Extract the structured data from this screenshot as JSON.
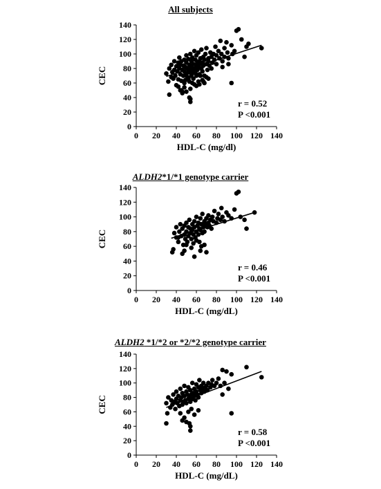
{
  "chart_data": [
    {
      "type": "scatter",
      "title": "All subjects",
      "title_italic": "",
      "xlabel": "HDL-C (mg/dl)",
      "ylabel": "CEC",
      "xlim": [
        0,
        140
      ],
      "ylim": [
        0,
        140
      ],
      "xticks": [
        0,
        20,
        40,
        60,
        80,
        100,
        120,
        140
      ],
      "yticks": [
        0,
        20,
        40,
        60,
        80,
        100,
        120,
        140
      ],
      "stats": [
        "r = 0.52",
        "P <0.001"
      ],
      "trendline": {
        "x": [
          30,
          125
        ],
        "y": [
          69,
          112
        ]
      },
      "points": {
        "x": [
          30,
          32,
          33,
          35,
          35,
          36,
          37,
          38,
          38,
          39,
          40,
          40,
          41,
          42,
          42,
          43,
          43,
          44,
          44,
          45,
          45,
          46,
          46,
          47,
          47,
          48,
          48,
          49,
          49,
          50,
          50,
          50,
          51,
          51,
          52,
          52,
          53,
          53,
          54,
          54,
          55,
          55,
          55,
          56,
          56,
          57,
          57,
          58,
          58,
          59,
          59,
          60,
          60,
          60,
          61,
          61,
          62,
          62,
          63,
          63,
          64,
          64,
          65,
          65,
          66,
          66,
          67,
          67,
          68,
          68,
          69,
          70,
          70,
          71,
          72,
          72,
          73,
          74,
          75,
          75,
          76,
          77,
          78,
          79,
          80,
          80,
          82,
          83,
          84,
          85,
          86,
          88,
          88,
          90,
          91,
          92,
          95,
          96,
          98,
          100,
          102,
          105,
          108,
          110,
          112,
          125,
          42,
          48,
          52,
          55,
          58,
          62,
          66,
          70,
          44,
          50,
          56,
          60,
          64,
          68,
          72,
          46,
          54,
          58,
          63,
          67,
          54,
          54,
          53,
          33,
          45,
          48,
          86,
          92,
          95
        ],
        "y": [
          73,
          62,
          80,
          68,
          85,
          75,
          66,
          78,
          90,
          70,
          83,
          57,
          76,
          88,
          65,
          80,
          95,
          72,
          85,
          63,
          90,
          78,
          48,
          84,
          70,
          92,
          76,
          82,
          64,
          88,
          72,
          98,
          80,
          68,
          93,
          75,
          85,
          62,
          78,
          100,
          90,
          70,
          82,
          76,
          95,
          86,
          66,
          80,
          104,
          74,
          92,
          84,
          70,
          98,
          88,
          78,
          102,
          82,
          90,
          72,
          94,
          86,
          80,
          106,
          88,
          76,
          96,
          84,
          92,
          70,
          100,
          86,
          108,
          78,
          94,
          90,
          84,
          102,
          96,
          80,
          88,
          100,
          92,
          110,
          86,
          98,
          104,
          94,
          118,
          100,
          90,
          108,
          96,
          116,
          102,
          94,
          112,
          100,
          104,
          132,
          134,
          120,
          96,
          110,
          114,
          108,
          55,
          60,
          66,
          72,
          58,
          62,
          64,
          68,
          50,
          48,
          60,
          56,
          70,
          60,
          66,
          46,
          52,
          74,
          58,
          62,
          34,
          38,
          40,
          44,
          50,
          54,
          82,
          86,
          60
        ]
      }
    },
    {
      "type": "scatter",
      "title": "*1/*1 genotype carrier",
      "title_italic": "ALDH2",
      "xlabel": "HDL-C (mg/dL)",
      "ylabel": "CEC",
      "xlim": [
        0,
        140
      ],
      "ylim": [
        0,
        140
      ],
      "xticks": [
        0,
        20,
        40,
        60,
        80,
        100,
        120,
        140
      ],
      "yticks": [
        0,
        20,
        40,
        60,
        80,
        100,
        120,
        140
      ],
      "stats": [
        "r = 0.46",
        "P <0.001"
      ],
      "trendline": {
        "x": [
          35,
          118
        ],
        "y": [
          71,
          106
        ]
      },
      "points": {
        "x": [
          36,
          38,
          40,
          40,
          42,
          43,
          44,
          45,
          46,
          47,
          48,
          48,
          49,
          50,
          50,
          51,
          52,
          52,
          53,
          54,
          54,
          55,
          56,
          56,
          57,
          58,
          58,
          59,
          60,
          60,
          61,
          62,
          62,
          63,
          64,
          64,
          65,
          66,
          66,
          67,
          68,
          68,
          69,
          70,
          71,
          72,
          72,
          73,
          74,
          75,
          76,
          77,
          78,
          80,
          81,
          82,
          84,
          85,
          86,
          88,
          90,
          92,
          95,
          98,
          100,
          102,
          104,
          108,
          110,
          118,
          37,
          46,
          50,
          55,
          60,
          65,
          70,
          42,
          48,
          57,
          63,
          68,
          58,
          64
        ],
        "y": [
          52,
          78,
          72,
          86,
          66,
          80,
          90,
          74,
          84,
          62,
          88,
          76,
          70,
          92,
          80,
          66,
          86,
          74,
          96,
          78,
          84,
          70,
          90,
          82,
          76,
          94,
          86,
          72,
          100,
          80,
          88,
          76,
          92,
          84,
          98,
          82,
          90,
          78,
          104,
          86,
          94,
          80,
          90,
          98,
          86,
          102,
          92,
          88,
          96,
          84,
          100,
          94,
          108,
          92,
          98,
          104,
          96,
          112,
          100,
          94,
          106,
          102,
          98,
          110,
          132,
          134,
          100,
          96,
          84,
          106,
          56,
          50,
          62,
          58,
          68,
          60,
          52,
          72,
          54,
          64,
          66,
          62,
          46,
          54
        ]
      }
    },
    {
      "type": "scatter",
      "title": " *1/*2 or *2/*2 genotype carrier",
      "title_italic": "ALDH2",
      "xlabel": "HDL-C (mg/dL)",
      "ylabel": "CEC",
      "xlim": [
        0,
        140
      ],
      "ylim": [
        0,
        140
      ],
      "xticks": [
        0,
        20,
        40,
        60,
        80,
        100,
        120,
        140
      ],
      "yticks": [
        0,
        20,
        40,
        60,
        80,
        100,
        120,
        140
      ],
      "stats": [
        "r = 0.58",
        "P <0.001"
      ],
      "trendline": {
        "x": [
          30,
          125
        ],
        "y": [
          66,
          116
        ]
      },
      "points": {
        "x": [
          30,
          31,
          32,
          34,
          35,
          36,
          37,
          38,
          39,
          40,
          40,
          41,
          42,
          43,
          44,
          44,
          45,
          46,
          46,
          47,
          48,
          48,
          49,
          50,
          50,
          51,
          52,
          52,
          53,
          54,
          54,
          55,
          56,
          56,
          57,
          58,
          58,
          59,
          60,
          60,
          61,
          62,
          62,
          63,
          64,
          65,
          65,
          66,
          67,
          68,
          69,
          70,
          71,
          72,
          74,
          75,
          76,
          78,
          80,
          82,
          84,
          86,
          88,
          90,
          95,
          110,
          125,
          44,
          48,
          52,
          55,
          58,
          62,
          46,
          50,
          54,
          54,
          53,
          30,
          86,
          92,
          95
        ],
        "y": [
          72,
          58,
          80,
          66,
          76,
          70,
          84,
          74,
          64,
          78,
          88,
          72,
          82,
          68,
          76,
          92,
          80,
          70,
          86,
          74,
          82,
          96,
          76,
          88,
          72,
          84,
          78,
          94,
          80,
          74,
          90,
          84,
          78,
          100,
          86,
          82,
          92,
          76,
          98,
          88,
          84,
          94,
          80,
          104,
          90,
          86,
          96,
          92,
          100,
          88,
          94,
          96,
          90,
          100,
          94,
          98,
          104,
          96,
          100,
          106,
          96,
          118,
          100,
          116,
          112,
          122,
          108,
          58,
          52,
          60,
          64,
          56,
          62,
          48,
          46,
          40,
          34,
          44,
          44,
          84,
          92,
          58
        ]
      }
    }
  ]
}
